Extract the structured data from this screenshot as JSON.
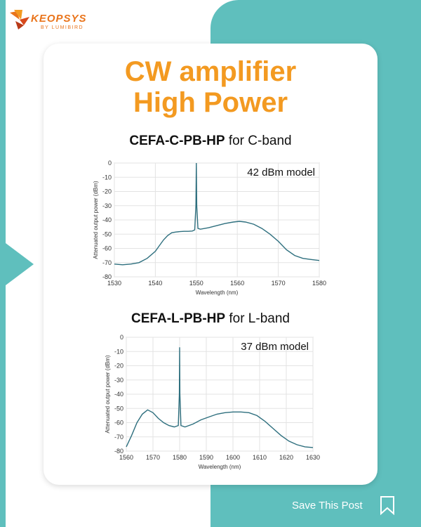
{
  "brand": {
    "logo_text": "KEOPSYS",
    "logo_sub": "BY LUMIBIRD",
    "accent": "#f39a21",
    "teal": "#5fbfbd",
    "line_color": "#2e6f7e"
  },
  "title_line1": "CW amplifier",
  "title_line2": "High Power",
  "save_label": "Save This Post",
  "chart_data": [
    {
      "type": "line",
      "heading_bold": "CEFA-C-PB-HP",
      "heading_rest": " for C-band",
      "annotation": "42 dBm model",
      "xlabel": "Wavelength (nm)",
      "ylabel": "Attenuated output power (dBm)",
      "xlim": [
        1530,
        1580
      ],
      "ylim": [
        -80,
        0
      ],
      "x_ticks": [
        "1530",
        "1540",
        "1550",
        "1560",
        "1570",
        "1580"
      ],
      "y_ticks": [
        "0",
        "-10",
        "-20",
        "-30",
        "-40",
        "-50",
        "-60",
        "-70",
        "-80"
      ],
      "grid": true,
      "series": [
        {
          "x": [
            1530,
            1532,
            1534,
            1536,
            1538,
            1540,
            1541,
            1542,
            1543,
            1544,
            1545,
            1546,
            1547,
            1548,
            1549,
            1549.6,
            1549.9,
            1550.0,
            1550.1,
            1550.4,
            1551,
            1553,
            1555,
            1557,
            1559,
            1560.5,
            1562,
            1564,
            1566,
            1568,
            1570,
            1572,
            1574,
            1576,
            1578,
            1580
          ],
          "y": [
            -71,
            -71.5,
            -71,
            -70,
            -67,
            -62,
            -58,
            -54,
            -51,
            -49,
            -48.5,
            -48.2,
            -48,
            -48,
            -47.8,
            -47,
            -30,
            0,
            -30,
            -46,
            -46.5,
            -45.5,
            -44,
            -42.5,
            -41.5,
            -41,
            -41.5,
            -43,
            -46,
            -50,
            -55,
            -61,
            -65,
            -67,
            -67.8,
            -68.5
          ]
        }
      ]
    },
    {
      "type": "line",
      "heading_bold": "CEFA-L-PB-HP",
      "heading_rest": " for L-band",
      "annotation": "37 dBm model",
      "xlabel": "Wavelength (nm)",
      "ylabel": "Attenuated output power (dBm)",
      "xlim": [
        1560,
        1630
      ],
      "ylim": [
        -80,
        0
      ],
      "x_ticks": [
        "1560",
        "1570",
        "1580",
        "1590",
        "1600",
        "1610",
        "1620",
        "1630"
      ],
      "y_ticks": [
        "0",
        "-10",
        "-20",
        "-30",
        "-40",
        "-50",
        "-60",
        "-70",
        "-80"
      ],
      "grid": true,
      "series": [
        {
          "x": [
            1560,
            1562,
            1564,
            1566,
            1568,
            1570,
            1572,
            1574,
            1576,
            1578,
            1579.5,
            1579.9,
            1580.0,
            1580.1,
            1580.5,
            1582,
            1585,
            1588,
            1591,
            1594,
            1597,
            1600,
            1603,
            1606,
            1609,
            1612,
            1615,
            1618,
            1621,
            1624,
            1627,
            1630
          ],
          "y": [
            -77,
            -69,
            -60,
            -54,
            -51,
            -53,
            -57,
            -60,
            -62,
            -63,
            -62,
            -40,
            -7,
            -40,
            -62,
            -63,
            -61,
            -58,
            -56,
            -54,
            -53,
            -52.5,
            -52.5,
            -53,
            -55,
            -59,
            -64,
            -69,
            -73,
            -75.5,
            -77,
            -77.5
          ]
        }
      ]
    }
  ]
}
